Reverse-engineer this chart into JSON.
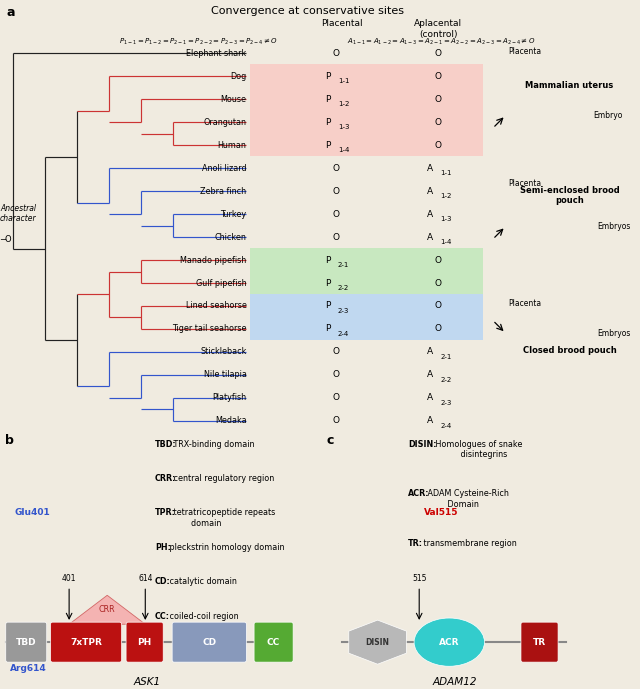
{
  "bg_color": "#f0ebe0",
  "title": "Convergence at conservative sites",
  "species": [
    "Elephant shark",
    "Dog",
    "Mouse",
    "Orangutan",
    "Human",
    "Anoli lizard",
    "Zebra finch",
    "Turkey",
    "Chicken",
    "Manado pipefish",
    "Gulf pipefish",
    "Lined seahorse",
    "Tiger tail seahorse",
    "Stickleback",
    "Nile tilapia",
    "Platyfish",
    "Medaka"
  ],
  "placental_vals": [
    "O",
    "P_{1-1}",
    "P_{1-2}",
    "P_{1-3}",
    "P_{1-4}",
    "O",
    "O",
    "O",
    "O",
    "P_{2-1}",
    "P_{2-2}",
    "P_{2-3}",
    "P_{2-4}",
    "O",
    "O",
    "O",
    "O"
  ],
  "aplacental_vals": [
    "O",
    "O",
    "O",
    "O",
    "O",
    "A_{1-1}",
    "A_{1-2}",
    "A_{1-3}",
    "A_{1-4}",
    "O",
    "O",
    "O",
    "O",
    "A_{2-1}",
    "A_{2-2}",
    "A_{2-3}",
    "A_{2-4}"
  ],
  "blue": "#3355cc",
  "red": "#cc3333",
  "black": "#222222",
  "salmon_bg": "#f7cfc8",
  "green_bg": "#c8e8c0",
  "blue_bg": "#c0d8f0",
  "ask1_label": "ASK1",
  "adam12_label": "ADAM12",
  "panel_b_legends": [
    [
      "TBD:",
      " TRX-binding domain"
    ],
    [
      "CRR:",
      " central regulatory region"
    ],
    [
      "TPR:",
      " tetratricopeptide repeats\n        domain"
    ],
    [
      "PH:",
      " pleckstrin homology domain"
    ],
    [
      "CD:",
      " catalytic domain"
    ],
    [
      "CC:",
      " coiled-coil region"
    ]
  ],
  "panel_c_legends": [
    [
      "DISIN:",
      " Homologues of snake\n           disintegrins"
    ],
    [
      "ACR:",
      " ADAM Cysteine-Rich\n         Domain"
    ],
    [
      "TR:",
      " transmembrane region"
    ]
  ]
}
